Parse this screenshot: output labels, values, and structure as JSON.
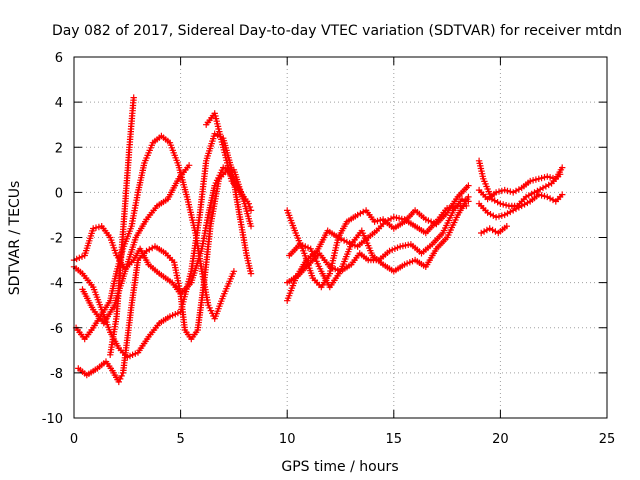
{
  "chart_data": {
    "type": "scatter",
    "title": "Day 082 of 2017, Sidereal Day-to-day VTEC variation (SDTVAR) for receiver mtdn",
    "xlabel": "GPS time / hours",
    "ylabel": "SDTVAR / TECUs",
    "xlim": [
      0,
      25
    ],
    "ylim": [
      -10,
      6
    ],
    "xticks": [
      0,
      5,
      10,
      15,
      20,
      25
    ],
    "yticks": [
      -10,
      -8,
      -6,
      -4,
      -2,
      0,
      2,
      4,
      6
    ],
    "grid": true,
    "marker": "plus",
    "color": "#ff0000",
    "series": [
      {
        "points": [
          [
            0.0,
            -3.0
          ],
          [
            0.5,
            -2.8
          ],
          [
            0.9,
            -1.6
          ],
          [
            1.3,
            -1.5
          ],
          [
            1.7,
            -2.0
          ],
          [
            2.0,
            -2.8
          ],
          [
            2.4,
            -3.4
          ],
          [
            2.8,
            -3.0
          ],
          [
            3.1,
            -2.5
          ],
          [
            3.5,
            -3.2
          ],
          [
            4.0,
            -3.6
          ],
          [
            4.6,
            -4.0
          ],
          [
            5.0,
            -4.5
          ],
          [
            5.5,
            -4.0
          ],
          [
            6.0,
            -2.5
          ],
          [
            6.3,
            -1.0
          ],
          [
            6.6,
            0.3
          ],
          [
            7.0,
            1.1
          ],
          [
            7.5,
            1.0
          ],
          [
            8.0,
            -0.5
          ],
          [
            8.3,
            -1.5
          ]
        ]
      },
      {
        "points": [
          [
            0.0,
            -3.3
          ],
          [
            0.4,
            -3.6
          ],
          [
            0.9,
            -4.2
          ],
          [
            1.3,
            -5.2
          ],
          [
            1.7,
            -6.2
          ],
          [
            2.1,
            -6.9
          ],
          [
            2.5,
            -7.3
          ],
          [
            3.0,
            -7.1
          ],
          [
            3.5,
            -6.4
          ],
          [
            4.0,
            -5.8
          ],
          [
            4.5,
            -5.5
          ],
          [
            5.0,
            -5.3
          ],
          [
            5.5,
            -3.5
          ],
          [
            5.9,
            -1.0
          ],
          [
            6.2,
            1.4
          ],
          [
            6.6,
            2.6
          ],
          [
            7.0,
            2.4
          ],
          [
            7.4,
            1.0
          ],
          [
            7.8,
            -1.2
          ],
          [
            8.1,
            -2.8
          ],
          [
            8.3,
            -3.6
          ]
        ]
      },
      {
        "points": [
          [
            0.1,
            -6.0
          ],
          [
            0.5,
            -6.5
          ],
          [
            0.9,
            -6.0
          ],
          [
            1.3,
            -5.4
          ],
          [
            1.7,
            -4.8
          ],
          [
            2.0,
            -3.5
          ],
          [
            2.3,
            -2.5
          ],
          [
            2.7,
            -1.5
          ],
          [
            3.0,
            0.0
          ],
          [
            3.3,
            1.3
          ],
          [
            3.7,
            2.2
          ],
          [
            4.1,
            2.5
          ],
          [
            4.5,
            2.2
          ],
          [
            4.9,
            1.2
          ],
          [
            5.3,
            -0.2
          ],
          [
            5.7,
            -1.8
          ],
          [
            6.0,
            -3.5
          ],
          [
            6.3,
            -5.0
          ],
          [
            6.6,
            -5.6
          ],
          [
            7.0,
            -4.6
          ],
          [
            7.5,
            -3.5
          ]
        ]
      },
      {
        "points": [
          [
            0.2,
            -7.8
          ],
          [
            0.6,
            -8.1
          ],
          [
            1.1,
            -7.8
          ],
          [
            1.5,
            -7.5
          ],
          [
            1.8,
            -7.9
          ],
          [
            2.1,
            -8.4
          ],
          [
            2.3,
            -8.0
          ],
          [
            2.7,
            -5.0
          ],
          [
            3.0,
            -3.0
          ],
          [
            3.4,
            -2.6
          ],
          [
            3.8,
            -2.4
          ],
          [
            4.3,
            -2.7
          ],
          [
            4.7,
            -3.1
          ],
          [
            5.0,
            -4.5
          ],
          [
            5.2,
            -6.1
          ],
          [
            5.5,
            -6.5
          ],
          [
            5.8,
            -6.1
          ],
          [
            6.1,
            -4.0
          ],
          [
            6.4,
            -1.5
          ],
          [
            6.8,
            0.6
          ],
          [
            7.2,
            1.0
          ],
          [
            7.6,
            0.4
          ],
          [
            8.0,
            -0.3
          ]
        ]
      },
      {
        "points": [
          [
            1.7,
            -7.2
          ],
          [
            2.0,
            -5.5
          ],
          [
            2.2,
            -3.0
          ],
          [
            2.4,
            -0.5
          ],
          [
            2.6,
            2.0
          ],
          [
            2.8,
            4.2
          ]
        ]
      },
      {
        "points": [
          [
            0.4,
            -4.3
          ],
          [
            0.9,
            -5.2
          ],
          [
            1.4,
            -5.8
          ],
          [
            1.9,
            -5.0
          ],
          [
            2.4,
            -3.5
          ],
          [
            2.9,
            -2.0
          ],
          [
            3.4,
            -1.2
          ],
          [
            3.9,
            -0.6
          ],
          [
            4.4,
            -0.3
          ],
          [
            4.9,
            0.6
          ],
          [
            5.4,
            1.2
          ]
        ]
      },
      {
        "points": [
          [
            6.2,
            3.0
          ],
          [
            6.6,
            3.5
          ],
          [
            7.0,
            2.0
          ],
          [
            7.4,
            0.5
          ],
          [
            7.8,
            0.0
          ],
          [
            8.2,
            -0.5
          ],
          [
            8.3,
            -0.8
          ]
        ]
      },
      {
        "points": [
          [
            10.0,
            -4.8
          ],
          [
            10.4,
            -3.8
          ],
          [
            10.9,
            -3.0
          ],
          [
            11.4,
            -2.6
          ],
          [
            11.9,
            -1.7
          ],
          [
            12.4,
            -2.0
          ],
          [
            12.8,
            -2.2
          ],
          [
            13.3,
            -2.4
          ],
          [
            13.8,
            -2.0
          ],
          [
            14.2,
            -1.7
          ],
          [
            14.6,
            -1.3
          ],
          [
            15.0,
            -1.1
          ],
          [
            15.5,
            -1.2
          ],
          [
            16.0,
            -1.5
          ],
          [
            16.5,
            -1.8
          ],
          [
            17.0,
            -1.3
          ],
          [
            17.5,
            -0.7
          ],
          [
            18.0,
            -0.6
          ],
          [
            18.4,
            -0.6
          ]
        ]
      },
      {
        "points": [
          [
            10.0,
            -4.0
          ],
          [
            10.5,
            -3.7
          ],
          [
            11.0,
            -3.2
          ],
          [
            11.5,
            -2.7
          ],
          [
            12.0,
            -3.3
          ],
          [
            12.5,
            -3.5
          ],
          [
            13.0,
            -3.2
          ],
          [
            13.4,
            -2.7
          ],
          [
            13.8,
            -3.0
          ],
          [
            14.3,
            -3.0
          ],
          [
            14.8,
            -2.6
          ],
          [
            15.3,
            -2.4
          ],
          [
            15.8,
            -2.3
          ],
          [
            16.3,
            -2.7
          ],
          [
            16.8,
            -2.3
          ],
          [
            17.3,
            -1.8
          ],
          [
            17.8,
            -0.8
          ],
          [
            18.2,
            -0.3
          ],
          [
            18.5,
            -0.4
          ]
        ]
      },
      {
        "points": [
          [
            10.1,
            -2.8
          ],
          [
            10.6,
            -2.3
          ],
          [
            11.1,
            -2.5
          ],
          [
            11.6,
            -3.5
          ],
          [
            12.0,
            -4.2
          ],
          [
            12.5,
            -3.5
          ],
          [
            13.0,
            -2.3
          ],
          [
            13.5,
            -1.7
          ],
          [
            14.0,
            -2.8
          ],
          [
            14.5,
            -3.2
          ],
          [
            15.0,
            -3.5
          ],
          [
            15.5,
            -3.2
          ],
          [
            16.0,
            -3.0
          ],
          [
            16.5,
            -3.3
          ],
          [
            17.0,
            -2.5
          ],
          [
            17.5,
            -2.0
          ],
          [
            18.0,
            -1.0
          ],
          [
            18.5,
            -0.2
          ]
        ]
      },
      {
        "points": [
          [
            10.0,
            -0.8
          ],
          [
            10.4,
            -1.8
          ],
          [
            10.8,
            -2.7
          ],
          [
            11.2,
            -3.8
          ],
          [
            11.6,
            -4.2
          ],
          [
            12.0,
            -3.6
          ],
          [
            12.4,
            -2.0
          ],
          [
            12.8,
            -1.3
          ],
          [
            13.3,
            -1.0
          ],
          [
            13.7,
            -0.8
          ],
          [
            14.1,
            -1.3
          ],
          [
            14.5,
            -1.2
          ],
          [
            15.0,
            -1.6
          ],
          [
            15.5,
            -1.3
          ],
          [
            16.0,
            -0.8
          ],
          [
            16.5,
            -1.2
          ],
          [
            17.0,
            -1.4
          ],
          [
            17.5,
            -0.9
          ],
          [
            18.0,
            -0.2
          ],
          [
            18.5,
            0.3
          ]
        ]
      },
      {
        "points": [
          [
            19.0,
            1.4
          ],
          [
            19.2,
            0.6
          ],
          [
            19.6,
            -0.3
          ],
          [
            20.0,
            -0.5
          ],
          [
            20.4,
            -0.6
          ],
          [
            20.8,
            -0.6
          ],
          [
            21.2,
            -0.2
          ],
          [
            21.6,
            0.0
          ],
          [
            22.0,
            0.2
          ],
          [
            22.4,
            0.4
          ],
          [
            22.8,
            0.8
          ]
        ]
      },
      {
        "points": [
          [
            19.0,
            -0.5
          ],
          [
            19.4,
            -0.9
          ],
          [
            19.8,
            -1.1
          ],
          [
            20.2,
            -1.0
          ],
          [
            20.6,
            -0.8
          ],
          [
            21.0,
            -0.6
          ],
          [
            21.4,
            -0.4
          ],
          [
            21.8,
            -0.1
          ],
          [
            22.2,
            -0.2
          ],
          [
            22.6,
            -0.4
          ],
          [
            22.9,
            -0.1
          ]
        ]
      },
      {
        "points": [
          [
            19.0,
            0.1
          ],
          [
            19.4,
            -0.3
          ],
          [
            19.8,
            0.0
          ],
          [
            20.2,
            0.1
          ],
          [
            20.6,
            0.0
          ],
          [
            21.0,
            0.2
          ],
          [
            21.4,
            0.5
          ],
          [
            21.8,
            0.6
          ],
          [
            22.2,
            0.7
          ],
          [
            22.6,
            0.6
          ],
          [
            22.9,
            1.1
          ]
        ]
      },
      {
        "points": [
          [
            19.1,
            -1.8
          ],
          [
            19.5,
            -1.6
          ],
          [
            19.9,
            -1.8
          ],
          [
            20.3,
            -1.5
          ]
        ]
      }
    ]
  }
}
